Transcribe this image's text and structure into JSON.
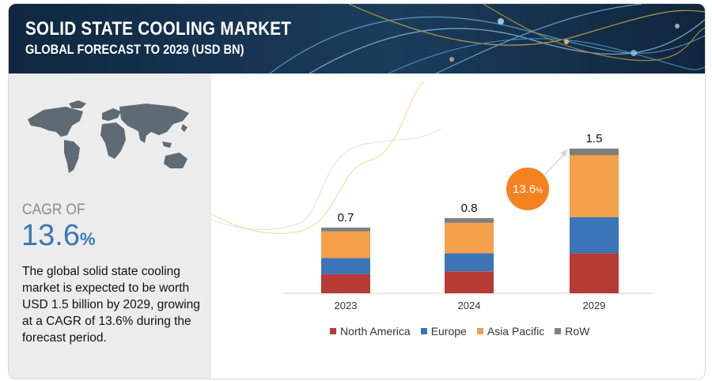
{
  "header": {
    "title": "SOLID STATE COOLING  MARKET",
    "subtitle": "GLOBAL FORECAST TO 2029 (USD BN)"
  },
  "sidebar": {
    "cagr_label": "CAGR OF",
    "cagr_value": "13.6",
    "cagr_unit": "%",
    "summary": "The global solid state cooling market is expected to be worth USD 1.5 billion by 2029, growing at a CAGR of 13.6% during the forecast period."
  },
  "colors": {
    "north_america": "#b83a35",
    "europe": "#3c74b8",
    "asia_pacific": "#f5a04a",
    "row": "#7f7f7f",
    "cagr_bubble": "#f58220"
  },
  "chart_data": {
    "type": "bar",
    "stacked": true,
    "categories": [
      "2023",
      "2024",
      "2029"
    ],
    "totals": [
      "0.7",
      "0.8",
      "1.5"
    ],
    "series": [
      {
        "name": "North America",
        "color": "#b83a35",
        "values": [
          0.2,
          0.23,
          0.42
        ]
      },
      {
        "name": "Europe",
        "color": "#3c74b8",
        "values": [
          0.17,
          0.19,
          0.38
        ]
      },
      {
        "name": "Asia Pacific",
        "color": "#f5a04a",
        "values": [
          0.28,
          0.32,
          0.65
        ]
      },
      {
        "name": "RoW",
        "color": "#7f7f7f",
        "values": [
          0.04,
          0.05,
          0.07
        ]
      }
    ],
    "annotation": {
      "value": "13.6",
      "unit": "%"
    },
    "legend_position": "bottom",
    "grid": false,
    "ylim": [
      0,
      1.52
    ]
  }
}
